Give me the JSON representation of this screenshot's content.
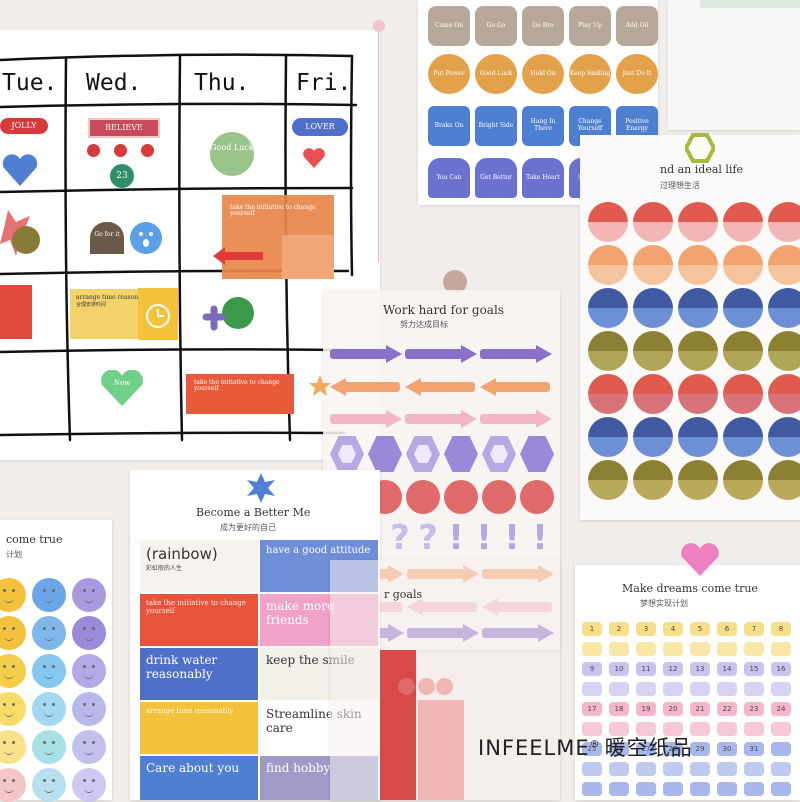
{
  "calendar": {
    "days": [
      "Tue.",
      "Wed.",
      "Thu.",
      "Fri."
    ],
    "stickers": {
      "jolly": "JOLLY",
      "believe": "BELIEVE",
      "lover": "LOVER",
      "good_luck": "Good Luck",
      "number": "23",
      "go_for_it": "Go for it",
      "arrange": "arrange time reasonably",
      "arrange_sub": "合理安排时间",
      "initiative": "take the initiative to change yourself",
      "now": "Now",
      "orange_note": "take the initiative to change yourself"
    }
  },
  "top_sheet": {
    "tabs_row1": [
      "Come On",
      "Go Go",
      "Go Bro",
      "Play Up",
      "Add Oil"
    ],
    "tabs_row2": [
      "Put Power",
      "Good Luck",
      "Hold On",
      "Keep Smiling",
      "Just Do It"
    ],
    "tabs_row3": [
      "Brake On",
      "Bright Side",
      "Hang In There",
      "Change Yourself",
      "Positive Energy"
    ],
    "tabs_row4": [
      "You Can",
      "Get Better",
      "Take Heart",
      "Stick To",
      "Stay With"
    ]
  },
  "ideal_sheet": {
    "title": "nd an ideal life",
    "subtitle": "过理想生活"
  },
  "goals_sheet": {
    "title": "Work hard for goals",
    "subtitle": "努力达成目标",
    "marks": [
      "?",
      "?",
      "?",
      "?",
      "!",
      "!",
      "!",
      "!"
    ],
    "overlap": "r goals"
  },
  "better_sheet": {
    "title": "Become a Better Me",
    "subtitle": "成为更好的自己",
    "labels": {
      "rainbow": "(rainbow)",
      "rainbow_sub": "彩虹般的人生",
      "good_attitude": "have a good attitude",
      "initiative": "take the initiative to change yourself",
      "make_friends": "make more friends",
      "drink_water": "drink water reasonably",
      "keep_smile": "keep the smile",
      "arrange": "arrange time reasonably",
      "skin_care": "Streamline skin care",
      "care_about": "Care about you",
      "find_hobby": "find hobby"
    }
  },
  "dreams_left": {
    "title": "come true",
    "subtitle": "计划"
  },
  "dreams_right": {
    "title": "Make dreams come true",
    "subtitle": "梦想实现计划",
    "numbers": [
      [
        "1",
        "2",
        "3",
        "4",
        "5",
        "6",
        "7",
        "8"
      ],
      [
        "9",
        "10",
        "11",
        "12",
        "13",
        "14",
        "15",
        "16"
      ],
      [
        "17",
        "18",
        "19",
        "20",
        "21",
        "22",
        "23",
        "24"
      ],
      [
        "25",
        "26",
        "27",
        "28",
        "29",
        "30",
        "31",
        ""
      ]
    ]
  },
  "brand": {
    "name": "INFEELME",
    "reg": "®",
    "cn": "暖空纸品"
  },
  "colors": {
    "coral": "#e05a4e",
    "navy": "#3f5aa0",
    "olive": "#8c8132",
    "peach": "#f2a36e",
    "lavender": "#9a88d8",
    "pink": "#f2aac5",
    "blue": "#4f7fd0",
    "mustard": "#e0a838"
  }
}
